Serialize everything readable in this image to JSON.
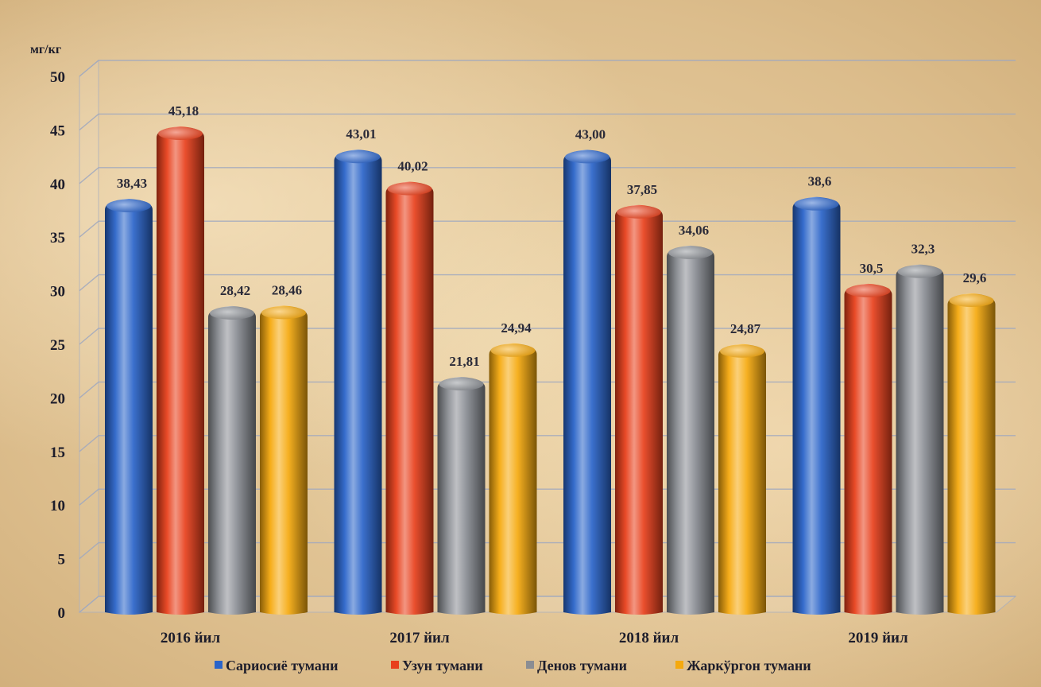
{
  "chart_data": {
    "type": "bar",
    "unit_label": "мг/кг",
    "categories": [
      "2016 йил",
      "2017 йил",
      "2018 йил",
      "2019 йил"
    ],
    "series": [
      {
        "name": "Сариосиё тумани",
        "color": "#2a64c9",
        "values": [
          38.43,
          43.01,
          43.0,
          38.6
        ],
        "labels": [
          "38,43",
          "43,01",
          "43,00",
          "38,6"
        ]
      },
      {
        "name": "Узун тумани",
        "color": "#e8401c",
        "values": [
          45.18,
          40.02,
          37.85,
          30.5
        ],
        "labels": [
          "45,18",
          "40,02",
          "37,85",
          "30,5"
        ]
      },
      {
        "name": "Денов тумани",
        "color": "#8a8d93",
        "values": [
          28.42,
          21.81,
          34.06,
          32.3
        ],
        "labels": [
          "28,42",
          "21,81",
          "34,06",
          "32,3"
        ]
      },
      {
        "name": "Жаркўргон тумани",
        "color": "#f5a90e",
        "values": [
          28.46,
          24.94,
          24.87,
          29.6
        ],
        "labels": [
          "28,46",
          "24,94",
          "24,87",
          "29,6"
        ]
      }
    ],
    "ylim": [
      0,
      50
    ],
    "yticks": [
      0,
      5,
      10,
      15,
      20,
      25,
      30,
      35,
      40,
      45,
      50
    ],
    "grid": true,
    "legend": "bottom"
  }
}
